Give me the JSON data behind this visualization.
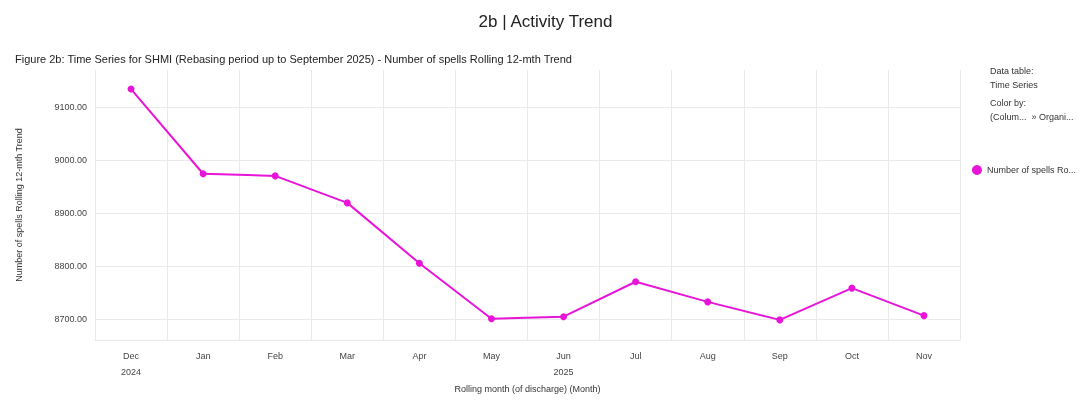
{
  "chart_data": {
    "type": "line",
    "title": "2b | Activity Trend",
    "subtitle": "Figure 2b: Time Series for SHMI (Rebasing period up to September 2025) - Number of spells Rolling 12-mth Trend",
    "xlabel": "Rolling month (of discharge) (Month)",
    "ylabel": "Number of spells Rolling 12-mth Trend",
    "categories": [
      "Dec\n2024",
      "Jan",
      "Feb",
      "Mar",
      "Apr",
      "May",
      "Jun\n2025",
      "Jul",
      "Aug",
      "Sep",
      "Oct",
      "Nov"
    ],
    "series": [
      {
        "name": "Number of spells Ro...",
        "color": "#e815d8",
        "values": [
          9134,
          8974,
          8970,
          8919,
          8805,
          8700,
          8704,
          8770,
          8732,
          8698,
          8758,
          8706
        ]
      }
    ],
    "ylim": [
      8660,
      9170
    ],
    "yticks": [
      {
        "value": 8700,
        "label": "8700.00"
      },
      {
        "value": 8800,
        "label": "8800.00"
      },
      {
        "value": 8900,
        "label": "8900.00"
      },
      {
        "value": 9000,
        "label": "9000.00"
      },
      {
        "value": 9100,
        "label": "9100.00"
      }
    ],
    "annotations": [
      "Data table:",
      "Time Series",
      "Color by:",
      "(Colum...  » Organi..."
    ],
    "grid": true,
    "legend": "top right",
    "marker": "circle",
    "line_style": "solid"
  }
}
